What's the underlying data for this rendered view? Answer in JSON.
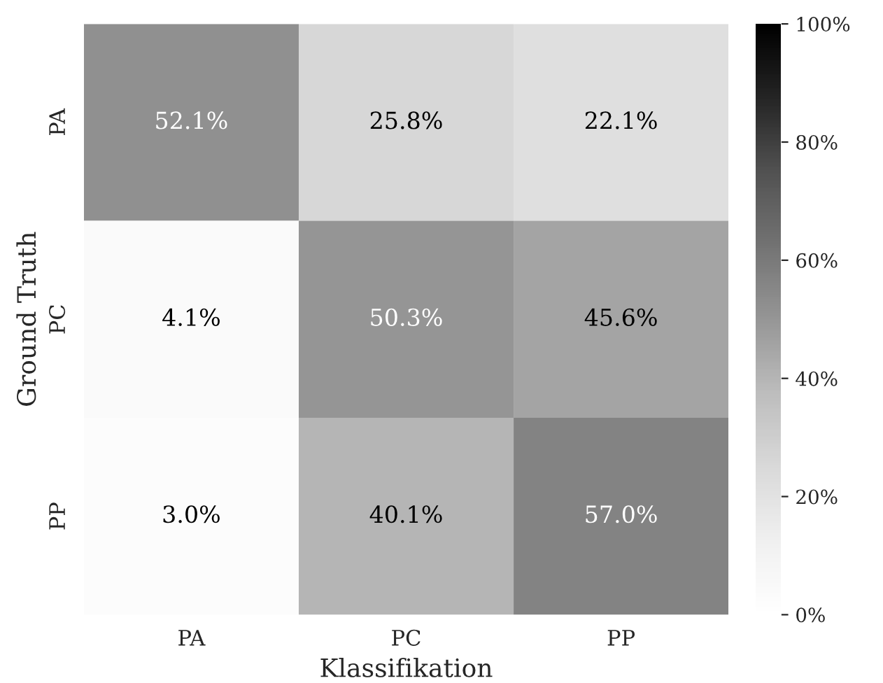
{
  "chart_data": {
    "type": "heatmap",
    "xlabel": "Klassifikation",
    "ylabel": "Ground Truth",
    "categories": [
      "PA",
      "PC",
      "PP"
    ],
    "y_categories": [
      "PA",
      "PC",
      "PP"
    ],
    "cells": [
      [
        52.1,
        25.8,
        22.1
      ],
      [
        4.1,
        50.3,
        45.6
      ],
      [
        3.0,
        40.1,
        57.0
      ]
    ],
    "cell_labels": [
      [
        "52.1%",
        "25.8%",
        "22.1%"
      ],
      [
        "4.1%",
        "50.3%",
        "45.6%"
      ],
      [
        "3.0%",
        "40.1%",
        "57.0%"
      ]
    ],
    "clim": [
      0,
      100
    ],
    "cticks": [
      {
        "value": 0,
        "label": "0%"
      },
      {
        "value": 20,
        "label": "20%"
      },
      {
        "value": 40,
        "label": "40%"
      },
      {
        "value": 60,
        "label": "60%"
      },
      {
        "value": 80,
        "label": "80%"
      },
      {
        "value": 100,
        "label": "100%"
      }
    ]
  }
}
